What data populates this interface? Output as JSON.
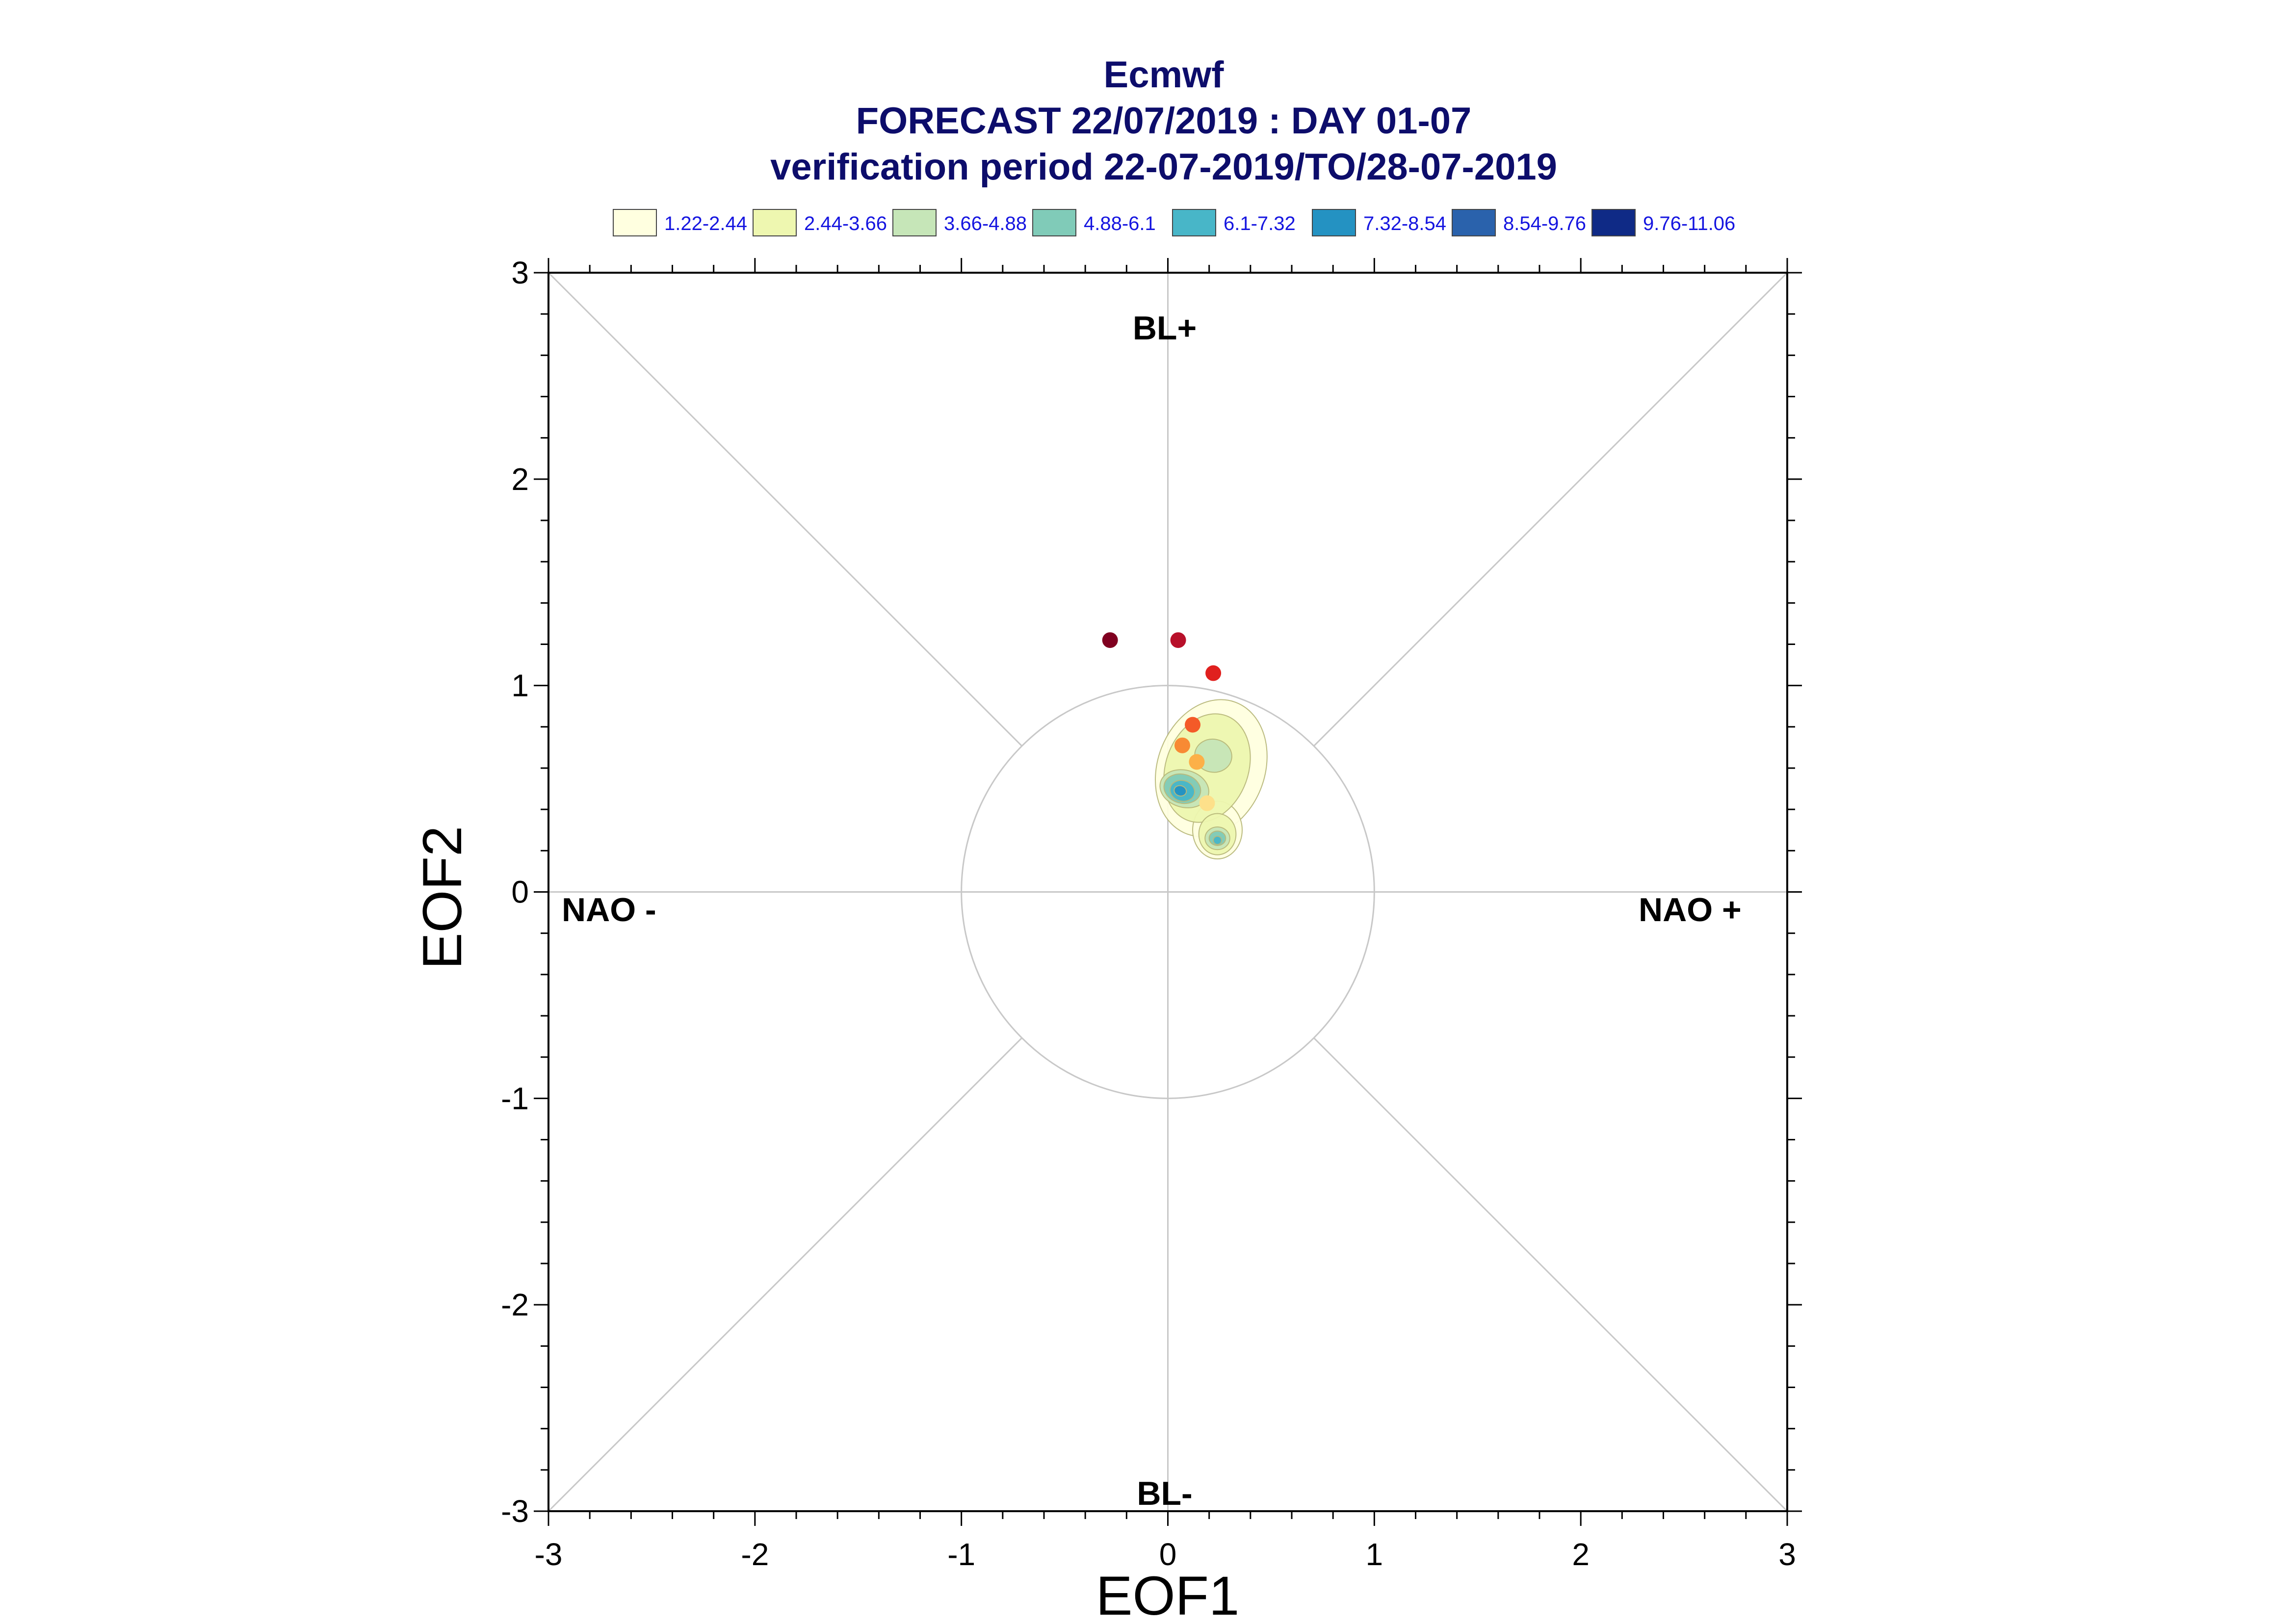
{
  "chart_data": {
    "type": "scatter",
    "title": "Ecmwf",
    "subtitle": "FORECAST 22/07/2019 : DAY 01-07",
    "subtitle2": "verification period 22-07-2019/TO/28-07-2019",
    "xlabel": "EOF1",
    "ylabel": "EOF2",
    "xlim": [
      -3,
      3
    ],
    "ylim": [
      -3,
      3
    ],
    "x_ticks": [
      "-3",
      "-2",
      "-1",
      "0",
      "1",
      "2",
      "3"
    ],
    "y_ticks": [
      "-3",
      "-2",
      "-1",
      "0",
      "1",
      "2",
      "3"
    ],
    "reference_circle_radius": 1,
    "grid": false,
    "legend_position": "top",
    "legend": [
      {
        "label": "1.22-2.44",
        "color": "#ffffe0"
      },
      {
        "label": "2.44-3.66",
        "color": "#eef7b0"
      },
      {
        "label": "3.66-4.88",
        "color": "#c6e6b8"
      },
      {
        "label": "4.88-6.1",
        "color": "#80cbb8"
      },
      {
        "label": "6.1-7.32",
        "color": "#48b6c8"
      },
      {
        "label": "7.32-8.54",
        "color": "#2492c2"
      },
      {
        "label": "8.54-9.76",
        "color": "#2a62ac"
      },
      {
        "label": "9.76-11.06",
        "color": "#0f2a86"
      }
    ],
    "sector_labels": {
      "top": "BL+",
      "bottom": "BL-",
      "left": "NAO -",
      "right": "NAO +"
    },
    "daily_points": [
      {
        "x": -0.28,
        "y": 1.22,
        "color": "#800020"
      },
      {
        "x": 0.05,
        "y": 1.22,
        "color": "#b8102a"
      },
      {
        "x": 0.22,
        "y": 1.06,
        "color": "#e0201e"
      },
      {
        "x": 0.12,
        "y": 0.81,
        "color": "#f45a28"
      },
      {
        "x": 0.07,
        "y": 0.71,
        "color": "#f88a34"
      },
      {
        "x": 0.14,
        "y": 0.63,
        "color": "#fcb048"
      },
      {
        "x": 0.19,
        "y": 0.43,
        "color": "#fde08a"
      }
    ],
    "density_clusters": [
      {
        "x": 0.07,
        "y": 0.5,
        "peak_level": 6
      },
      {
        "x": 0.24,
        "y": 0.26,
        "peak_level": 5
      },
      {
        "x": 0.22,
        "y": 0.66,
        "peak_level": 3
      }
    ]
  }
}
